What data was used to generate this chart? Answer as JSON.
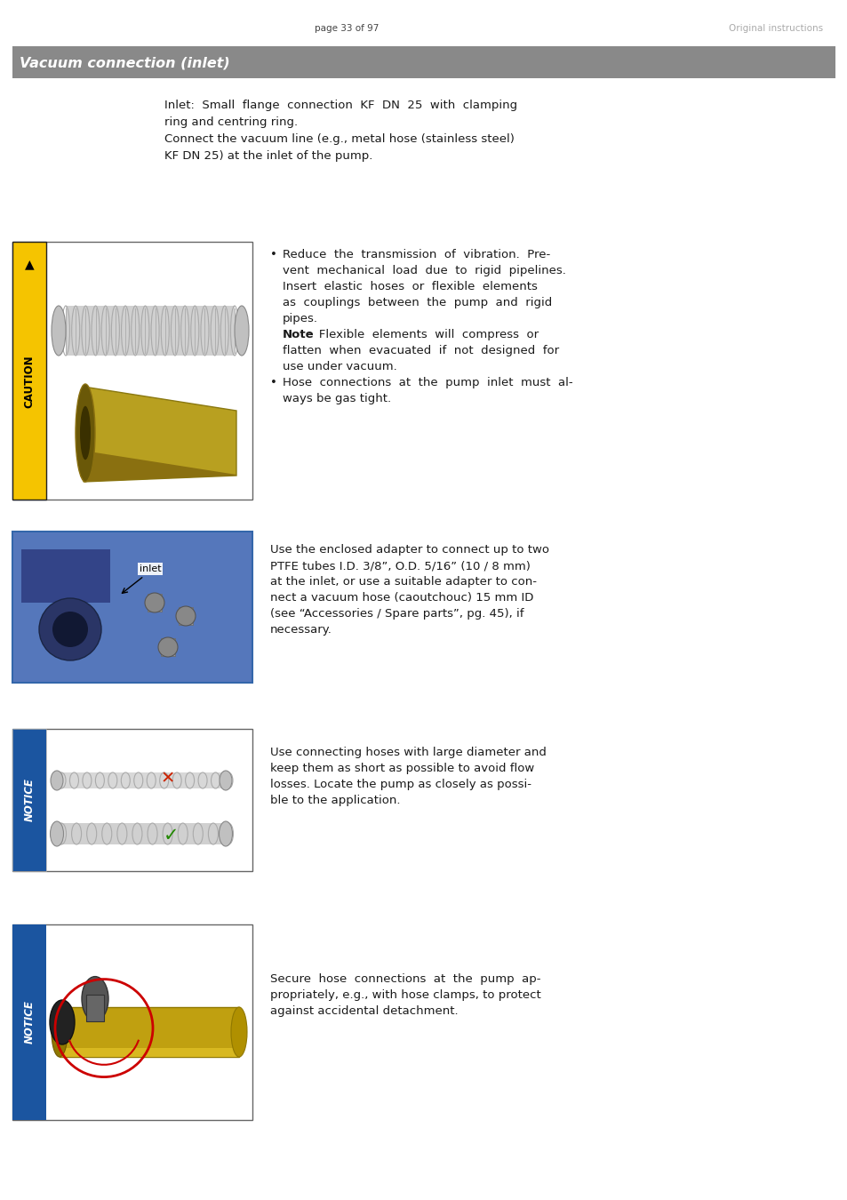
{
  "page_header_left": "page 33 of 97",
  "page_header_right": "Original instructions",
  "section_title": "Vacuum connection (inlet)",
  "section_title_bg": "#898989",
  "section_title_color": "#ffffff",
  "body_text_color": "#1a1a1a",
  "bg_color": "#ffffff",
  "caution_bg": "#f5c400",
  "notice_bg": "#1b55a0",
  "font_size_header": 7.5,
  "font_size_title": 11.5,
  "font_size_body": 9.5,
  "font_size_label_vert": 8.5
}
